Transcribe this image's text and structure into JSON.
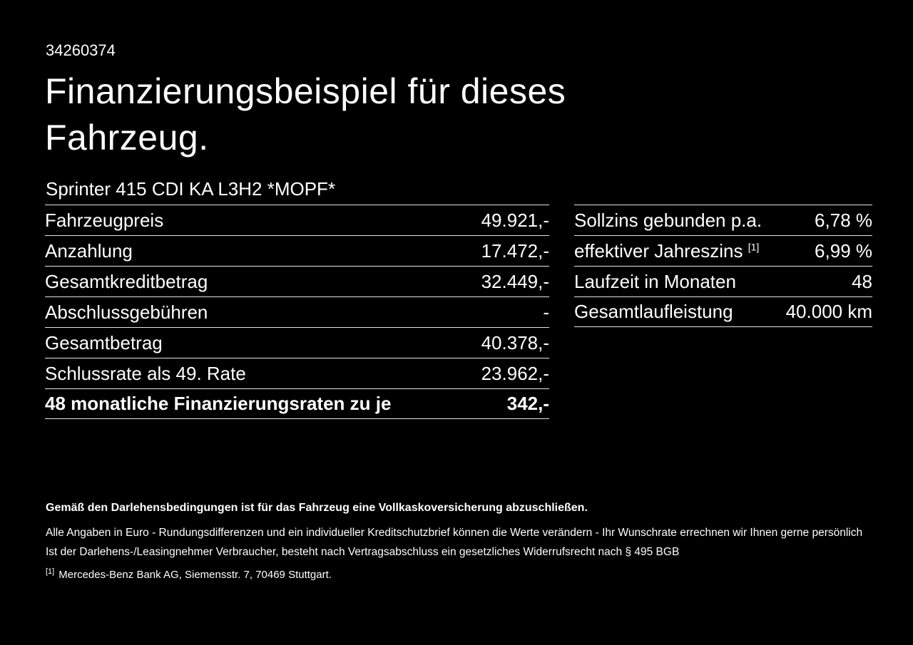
{
  "page": {
    "doc_id": "34260374",
    "title_line1": "Finanzierungsbeispiel für dieses",
    "title_line2": "Fahrzeug.",
    "vehicle_model": "Sprinter 415 CDI KA L3H2 *MOPF*"
  },
  "financing_table": {
    "rows": [
      {
        "label": "Fahrzeugpreis",
        "value": "49.921,-"
      },
      {
        "label": "Anzahlung",
        "value": "17.472,-"
      },
      {
        "label": "Gesamtkreditbetrag",
        "value": "32.449,-"
      },
      {
        "label": "Abschlussgebühren",
        "value": "-"
      },
      {
        "label": "Gesamtbetrag",
        "value": "40.378,-"
      },
      {
        "label": "Schlussrate als 49. Rate",
        "value": "23.962,-"
      },
      {
        "label": "48 monatliche Finanzierungsraten zu je",
        "value": "342,-"
      }
    ]
  },
  "conditions_table": {
    "rows": [
      {
        "label": "Sollzins gebunden p.a.",
        "sup": "",
        "value": "6,78 %"
      },
      {
        "label": "effektiver Jahreszins ",
        "sup": "[1]",
        "value": "6,99 %"
      },
      {
        "label": "Laufzeit in Monaten",
        "sup": "",
        "value": "48"
      },
      {
        "label": "Gesamtlaufleistung",
        "sup": "",
        "value": "40.000 km"
      }
    ]
  },
  "footer": {
    "bold_note": "Gemäß den Darlehensbedingungen ist für das Fahrzeug eine Vollkaskoversicherung abzuschließen.",
    "note_line1": "Alle Angaben in Euro - Rundungsdifferenzen und ein individueller Kreditschutzbrief können die Werte verändern - Ihr Wunschrate errechnen wir Ihnen gerne persönlich",
    "note_line2": "Ist der Darlehens-/Leasingnehmer Verbraucher, besteht nach Vertragsabschluss ein gesetzliches Widerrufsrecht nach § 495 BGB",
    "footnote_marker": "[1]",
    "footnote_text": "Mercedes-Benz Bank AG, Siemensstr. 7, 70469 Stuttgart.",
    "colors": {
      "background": "#000000",
      "text": "#ffffff",
      "rule": "#e4e4e4"
    }
  }
}
